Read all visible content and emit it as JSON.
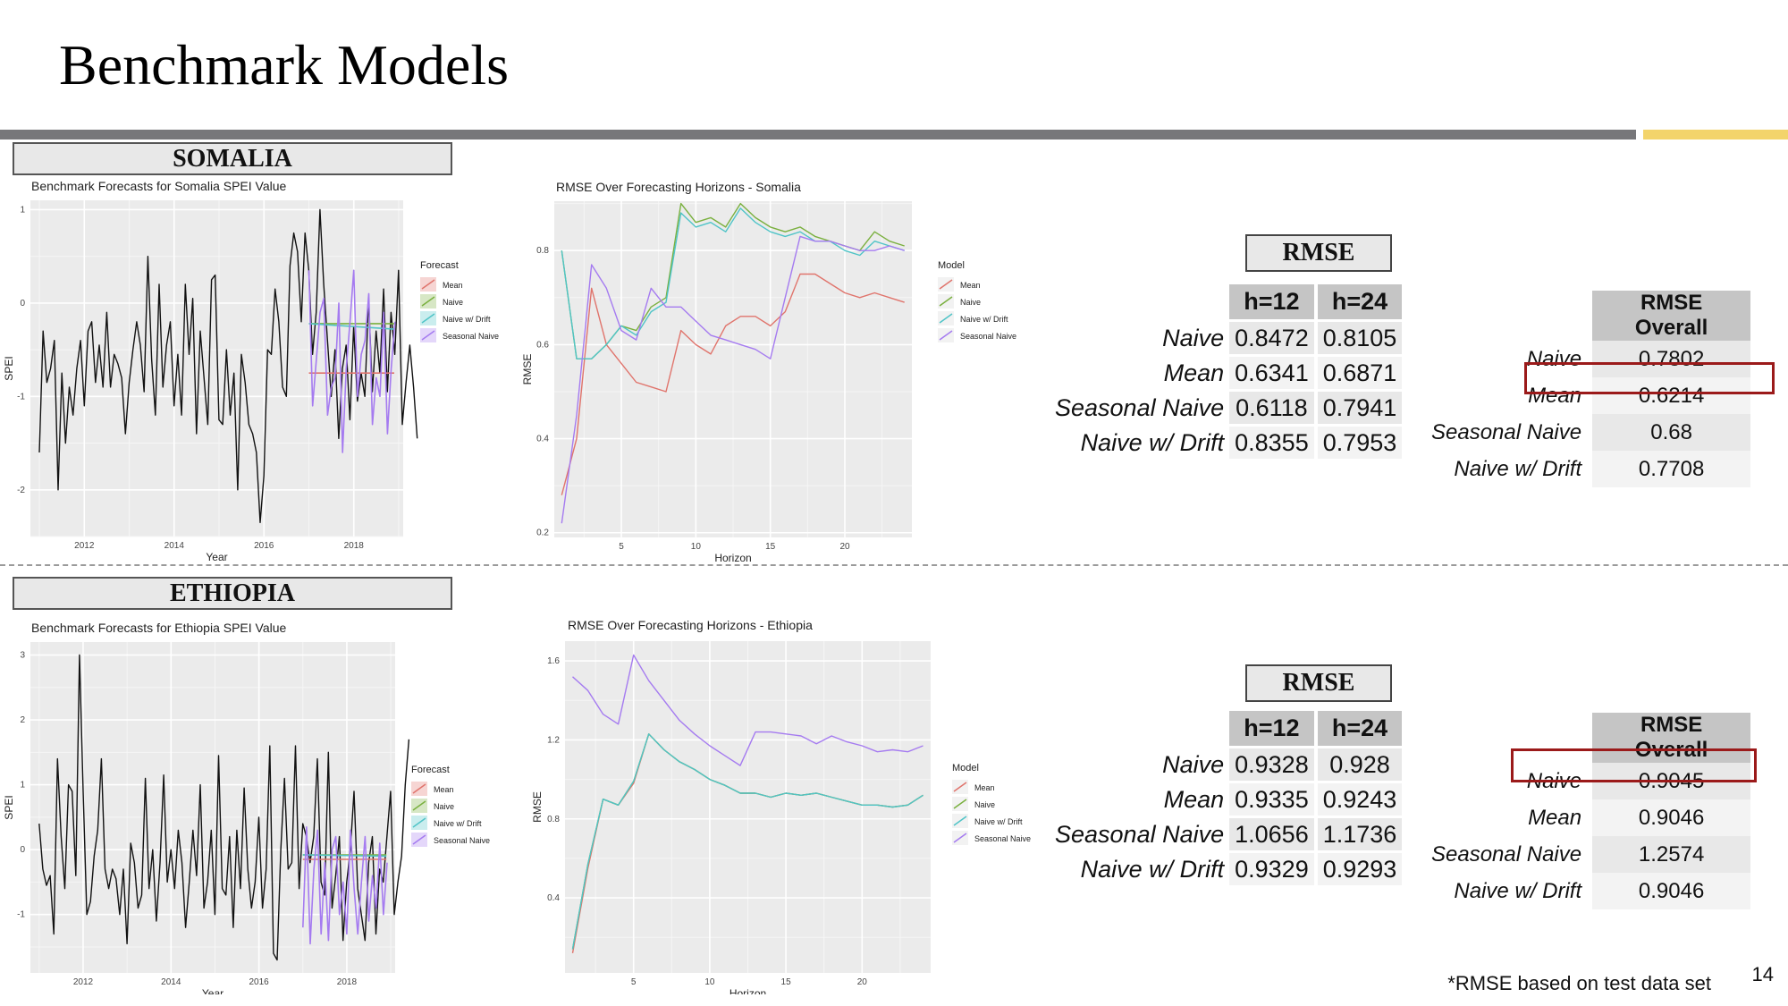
{
  "title": "Benchmark Models",
  "footnote": "*RMSE based on test data set",
  "page_number": "14",
  "colors": {
    "mean": "#e0746c",
    "naive": "#7ab03f",
    "drift": "#4fc4c7",
    "seasonal": "#a57bf0",
    "actual": "#111111",
    "highlight": "#9b1a1a"
  },
  "somalia": {
    "label": "SOMALIA",
    "rmse_title": "RMSE",
    "horizon_table": {
      "headers": [
        "h=12",
        "h=24"
      ],
      "rows": [
        {
          "model": "Naive",
          "h12": "0.8472",
          "h24": "0.8105"
        },
        {
          "model": "Mean",
          "h12": "0.6341",
          "h24": "0.6871"
        },
        {
          "model": "Seasonal Naive",
          "h12": "0.6118",
          "h24": "0.7941"
        },
        {
          "model": "Naive w/ Drift",
          "h12": "0.8355",
          "h24": "0.7953"
        }
      ]
    },
    "overall_table": {
      "header": "RMSE Overall",
      "rows": [
        {
          "model": "Naive",
          "value": "0.7802"
        },
        {
          "model": "Mean",
          "value": "0.6214"
        },
        {
          "model": "Seasonal Naive",
          "value": "0.68"
        },
        {
          "model": "Naive w/ Drift",
          "value": "0.7708"
        }
      ],
      "highlighted_model": "Mean"
    }
  },
  "ethiopia": {
    "label": "ETHIOPIA",
    "rmse_title": "RMSE",
    "horizon_table": {
      "headers": [
        "h=12",
        "h=24"
      ],
      "rows": [
        {
          "model": "Naive",
          "h12": "0.9328",
          "h24": "0.928"
        },
        {
          "model": "Mean",
          "h12": "0.9335",
          "h24": "0.9243"
        },
        {
          "model": "Seasonal Naive",
          "h12": "1.0656",
          "h24": "1.1736"
        },
        {
          "model": "Naive w/ Drift",
          "h12": "0.9329",
          "h24": "0.9293"
        }
      ]
    },
    "overall_table": {
      "header": "RMSE Overall",
      "rows": [
        {
          "model": "Naive",
          "value": "0.9045"
        },
        {
          "model": "Mean",
          "value": "0.9046"
        },
        {
          "model": "Seasonal Naive",
          "value": "1.2574"
        },
        {
          "model": "Naive w/ Drift",
          "value": "0.9046"
        }
      ],
      "highlighted_model": "Naive"
    }
  },
  "chart_data": [
    {
      "id": "somalia_forecast",
      "type": "line",
      "title": "Benchmark Forecasts for Somalia SPEI Value",
      "xlabel": "Year",
      "ylabel": "SPEI",
      "xlim": [
        2010.8,
        2019.1
      ],
      "ylim": [
        -2.5,
        1.1
      ],
      "xticks": [
        2012,
        2014,
        2016,
        2018
      ],
      "yticks": [
        -2,
        -1,
        0,
        1
      ],
      "legend_title": "Forecast",
      "legend": [
        "Mean",
        "Naive",
        "Naive w/ Drift",
        "Seasonal Naive"
      ],
      "actual": {
        "x_start": 2011.0,
        "x_step": 0.0833,
        "values": [
          -1.6,
          -0.3,
          -0.85,
          -0.7,
          -0.4,
          -2.0,
          -0.75,
          -1.5,
          -0.9,
          -1.2,
          -0.7,
          -0.4,
          -1.1,
          -0.3,
          -0.2,
          -0.85,
          -0.45,
          -0.9,
          -0.1,
          -0.9,
          -0.55,
          -0.65,
          -0.8,
          -1.4,
          -0.85,
          -0.5,
          -0.2,
          -0.45,
          -0.95,
          0.5,
          -0.6,
          -1.2,
          0.2,
          -0.9,
          -0.45,
          -0.2,
          -1.1,
          -0.55,
          -1.2,
          0.2,
          -0.55,
          0.05,
          -1.4,
          -0.3,
          -0.8,
          -1.3,
          0.25,
          0.3,
          -1.25,
          -1.3,
          -0.5,
          -1.2,
          -0.75,
          -2.0,
          -0.55,
          -0.85,
          -1.3,
          -1.4,
          -1.6,
          -2.35,
          -1.85,
          -0.5,
          -0.55,
          0.15,
          -0.2,
          -0.9,
          -1.0,
          0.4,
          0.75,
          0.55,
          -0.2,
          0.75,
          0.35,
          -0.55,
          -0.1,
          1.0,
          0.2,
          -0.4,
          -1.0,
          -0.5,
          -1.45,
          -0.7,
          -0.45,
          -1.25,
          -0.25,
          -1.05,
          -0.75,
          -1.0,
          0.05,
          -0.95,
          -0.3,
          -0.75,
          0.15,
          -0.95,
          -0.1,
          -0.55,
          0.35,
          -1.3,
          -0.85,
          -0.45,
          -0.9,
          -1.45
        ]
      },
      "forecast_start": 2017.0,
      "forecast_step": 0.0833,
      "forecast_end": 2018.9,
      "mean_level": -0.75,
      "naive_level": -0.22,
      "drift": {
        "start": -0.22,
        "end": -0.28
      },
      "seasonal_naive": [
        0.35,
        -1.1,
        -0.6,
        -0.1,
        0.05,
        -1.2,
        -0.9,
        -0.8,
        0.0,
        -1.6,
        -0.7,
        -0.2,
        0.35,
        -1.0,
        -0.55,
        -0.4,
        0.1,
        -1.3,
        -0.8,
        -1.0,
        -0.1,
        -1.4,
        -0.7,
        -0.2
      ]
    },
    {
      "id": "somalia_rmse",
      "type": "line",
      "title": "RMSE Over Forecasting Horizons - Somalia",
      "xlabel": "Horizon",
      "ylabel": "RMSE",
      "xlim": [
        0.5,
        24.5
      ],
      "ylim": [
        0.19,
        0.905
      ],
      "xticks": [
        5,
        10,
        15,
        20
      ],
      "yticks": [
        0.2,
        0.4,
        0.6,
        0.8
      ],
      "legend_title": "Model",
      "legend": [
        "Mean",
        "Naive",
        "Naive w/ Drift",
        "Seasonal Naive"
      ],
      "x": [
        1,
        2,
        3,
        4,
        5,
        6,
        7,
        8,
        9,
        10,
        11,
        12,
        13,
        14,
        15,
        16,
        17,
        18,
        19,
        20,
        21,
        22,
        23,
        24
      ],
      "series": [
        {
          "name": "Mean",
          "values": [
            0.28,
            0.4,
            0.72,
            0.6,
            0.56,
            0.52,
            0.51,
            0.5,
            0.63,
            0.6,
            0.58,
            0.64,
            0.66,
            0.66,
            0.64,
            0.67,
            0.75,
            0.75,
            0.73,
            0.71,
            0.7,
            0.71,
            0.7,
            0.69
          ]
        },
        {
          "name": "Naive",
          "values": [
            0.8,
            0.57,
            0.57,
            0.6,
            0.64,
            0.63,
            0.68,
            0.7,
            0.9,
            0.86,
            0.87,
            0.85,
            0.9,
            0.87,
            0.85,
            0.84,
            0.85,
            0.83,
            0.82,
            0.81,
            0.8,
            0.84,
            0.82,
            0.81
          ]
        },
        {
          "name": "Naive w/ Drift",
          "values": [
            0.8,
            0.57,
            0.57,
            0.6,
            0.64,
            0.62,
            0.67,
            0.69,
            0.88,
            0.85,
            0.86,
            0.84,
            0.89,
            0.86,
            0.84,
            0.83,
            0.84,
            0.82,
            0.82,
            0.8,
            0.79,
            0.82,
            0.81,
            0.8
          ]
        },
        {
          "name": "Seasonal Naive",
          "values": [
            0.22,
            0.45,
            0.77,
            0.72,
            0.63,
            0.61,
            0.72,
            0.68,
            0.68,
            0.65,
            0.62,
            0.61,
            0.6,
            0.59,
            0.57,
            0.7,
            0.83,
            0.82,
            0.82,
            0.81,
            0.8,
            0.8,
            0.81,
            0.8
          ]
        }
      ]
    },
    {
      "id": "ethiopia_forecast",
      "type": "line",
      "title": "Benchmark Forecasts for Ethiopia SPEI Value",
      "xlabel": "Year",
      "ylabel": "SPEI",
      "xlim": [
        2010.8,
        2019.1
      ],
      "ylim": [
        -1.9,
        3.2
      ],
      "xticks": [
        2012,
        2014,
        2016,
        2018
      ],
      "yticks": [
        -1,
        0,
        1,
        2,
        3
      ],
      "legend_title": "Forecast",
      "legend": [
        "Mean",
        "Naive",
        "Naive w/ Drift",
        "Seasonal Naive"
      ],
      "actual": {
        "x_start": 2011.0,
        "x_step": 0.0833,
        "values": [
          0.4,
          -0.3,
          -0.55,
          -0.4,
          -1.3,
          1.4,
          0.2,
          -0.6,
          1.0,
          0.9,
          -0.4,
          3.0,
          0.9,
          -1.0,
          -0.8,
          -0.1,
          0.3,
          1.4,
          -0.3,
          -0.6,
          -0.3,
          -0.45,
          -1.0,
          -0.3,
          -1.45,
          0.1,
          -0.2,
          -0.9,
          -0.7,
          1.1,
          -0.6,
          0.0,
          -1.1,
          -0.2,
          1.15,
          -0.5,
          0.0,
          -0.6,
          0.3,
          -0.2,
          -1.2,
          -0.5,
          0.3,
          -0.4,
          1.0,
          -0.9,
          -0.5,
          0.3,
          -1.0,
          1.45,
          -0.6,
          -0.7,
          0.2,
          -1.2,
          0.3,
          -0.6,
          0.95,
          -0.3,
          -0.9,
          -0.5,
          0.5,
          -0.9,
          -0.3,
          1.6,
          -1.6,
          -1.7,
          0.0,
          1.1,
          -0.3,
          -0.2,
          1.6,
          -0.6,
          0.4,
          0.2,
          -0.2,
          0.2,
          1.4,
          -0.5,
          -0.7,
          1.5,
          -0.9,
          -0.4,
          0.2,
          -1.4,
          -0.5,
          0.0,
          0.9,
          -0.6,
          -1.0,
          -1.4,
          -0.2,
          0.2,
          -1.3,
          -0.3,
          -0.5,
          0.2,
          0.9,
          -1.0,
          -0.5,
          -0.1,
          1.0,
          1.7
        ]
      },
      "forecast_start": 2017.0,
      "forecast_step": 0.0833,
      "forecast_end": 2018.9,
      "mean_level": -0.15,
      "naive_level": -0.08,
      "drift": {
        "start": -0.08,
        "end": -0.1
      },
      "seasonal_naive": [
        -1.2,
        0.35,
        -1.45,
        -0.3,
        0.3,
        -1.3,
        -0.2,
        -1.4,
        0.0,
        0.2,
        -1.0,
        -0.5,
        -1.3,
        0.3,
        -0.6,
        -1.3,
        -0.5,
        0.2,
        -1.1,
        -0.4,
        -0.9,
        0.1,
        -1.0,
        -0.2
      ]
    },
    {
      "id": "ethiopia_rmse",
      "type": "line",
      "title": "RMSE Over Forecasting Horizons - Ethiopia",
      "xlabel": "Horizon",
      "ylabel": "RMSE",
      "xlim": [
        0.5,
        24.5
      ],
      "ylim": [
        0.02,
        1.7
      ],
      "xticks": [
        5,
        10,
        15,
        20
      ],
      "yticks": [
        0.4,
        0.8,
        1.2,
        1.6
      ],
      "legend_title": "Model",
      "legend": [
        "Mean",
        "Naive",
        "Naive w/ Drift",
        "Seasonal Naive"
      ],
      "x": [
        1,
        2,
        3,
        4,
        5,
        6,
        7,
        8,
        9,
        10,
        11,
        12,
        13,
        14,
        15,
        16,
        17,
        18,
        19,
        20,
        21,
        22,
        23,
        24
      ],
      "series": [
        {
          "name": "Mean",
          "values": [
            0.12,
            0.55,
            0.9,
            0.87,
            0.98,
            1.23,
            1.15,
            1.09,
            1.05,
            1.0,
            0.97,
            0.93,
            0.93,
            0.91,
            0.93,
            0.92,
            0.93,
            0.91,
            0.89,
            0.87,
            0.87,
            0.86,
            0.87,
            0.92
          ]
        },
        {
          "name": "Naive",
          "values": [
            0.14,
            0.57,
            0.9,
            0.87,
            0.99,
            1.23,
            1.15,
            1.09,
            1.05,
            1.0,
            0.97,
            0.93,
            0.93,
            0.91,
            0.93,
            0.92,
            0.93,
            0.91,
            0.89,
            0.87,
            0.87,
            0.86,
            0.87,
            0.92
          ]
        },
        {
          "name": "Naive w/ Drift",
          "values": [
            0.14,
            0.57,
            0.9,
            0.87,
            0.99,
            1.23,
            1.15,
            1.09,
            1.05,
            1.0,
            0.97,
            0.93,
            0.93,
            0.91,
            0.93,
            0.92,
            0.93,
            0.91,
            0.89,
            0.87,
            0.87,
            0.86,
            0.87,
            0.92
          ]
        },
        {
          "name": "Seasonal Naive",
          "values": [
            1.52,
            1.45,
            1.33,
            1.28,
            1.63,
            1.5,
            1.4,
            1.3,
            1.23,
            1.17,
            1.12,
            1.07,
            1.24,
            1.24,
            1.23,
            1.22,
            1.18,
            1.22,
            1.19,
            1.17,
            1.14,
            1.15,
            1.14,
            1.17
          ]
        }
      ]
    }
  ]
}
